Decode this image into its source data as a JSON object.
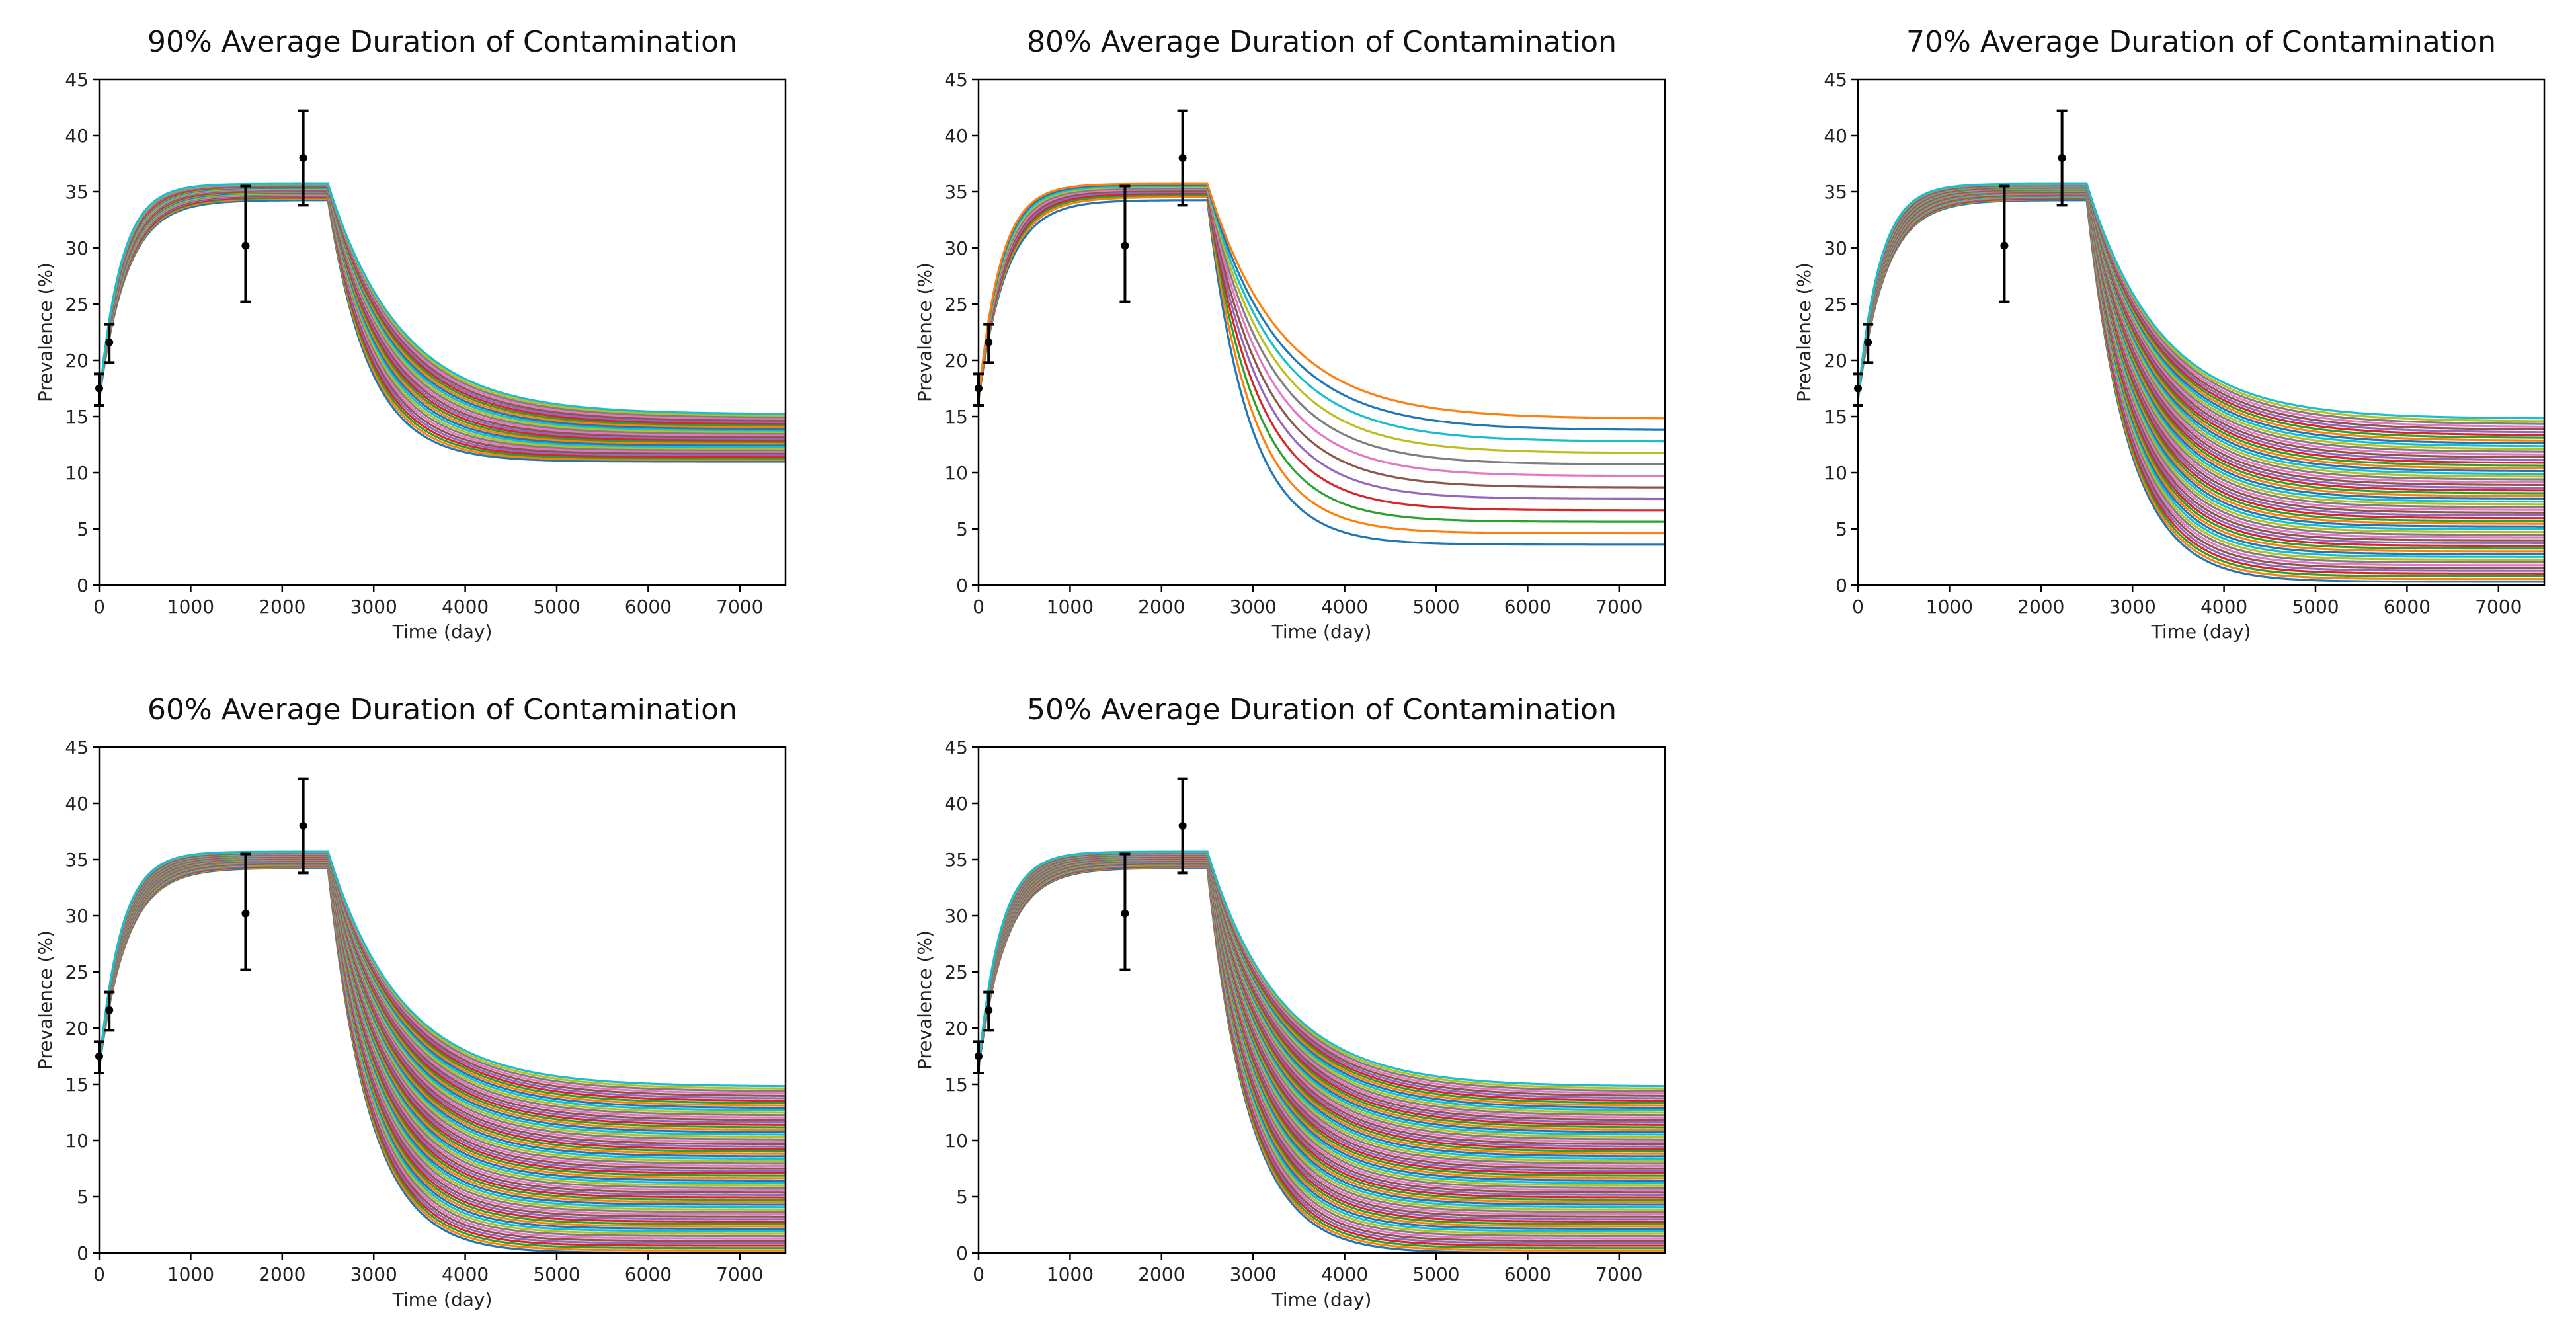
{
  "chart_data": [
    {
      "type": "line",
      "title": "90% Average Duration of Contamination",
      "xlabel": "Time (day)",
      "ylabel": "Prevalence (%)",
      "xlim": [
        0,
        7500
      ],
      "ylim": [
        0,
        45
      ],
      "xticks": [
        "0",
        "1000",
        "2000",
        "3000",
        "4000",
        "5000",
        "6000",
        "7000"
      ],
      "yticks": [
        "0",
        "5",
        "10",
        "15",
        "20",
        "25",
        "30",
        "35",
        "40",
        "45"
      ],
      "legend": "none",
      "grid": false,
      "series_summary": {
        "count": 30,
        "plateau_range": [
          34.0,
          35.7
        ],
        "drop_day": 2500,
        "final_range": [
          11.0,
          15.2
        ]
      },
      "observations": [
        {
          "x": 0,
          "y": 17.5,
          "err_low": 16.0,
          "err_high": 18.8
        },
        {
          "x": 110,
          "y": 21.6,
          "err_low": 19.8,
          "err_high": 23.2
        },
        {
          "x": 1600,
          "y": 30.2,
          "err_low": 25.2,
          "err_high": 35.5
        },
        {
          "x": 2230,
          "y": 38.0,
          "err_low": 33.8,
          "err_high": 42.2
        }
      ]
    },
    {
      "type": "line",
      "title": "80% Average Duration of Contamination",
      "xlabel": "Time (day)",
      "ylabel": "Prevalence (%)",
      "xlim": [
        0,
        7500
      ],
      "ylim": [
        0,
        45
      ],
      "xticks": [
        "0",
        "1000",
        "2000",
        "3000",
        "4000",
        "5000",
        "6000",
        "7000"
      ],
      "yticks": [
        "0",
        "5",
        "10",
        "15",
        "20",
        "25",
        "30",
        "35",
        "40",
        "45"
      ],
      "legend": "none",
      "grid": false,
      "series_summary": {
        "count": 12,
        "plateau_range": [
          34.0,
          35.7
        ],
        "drop_day": 2500,
        "final_range": [
          3.6,
          14.8
        ]
      },
      "observations": [
        {
          "x": 0,
          "y": 17.5,
          "err_low": 16.0,
          "err_high": 18.8
        },
        {
          "x": 110,
          "y": 21.6,
          "err_low": 19.8,
          "err_high": 23.2
        },
        {
          "x": 1600,
          "y": 30.2,
          "err_low": 25.2,
          "err_high": 35.5
        },
        {
          "x": 2230,
          "y": 38.0,
          "err_low": 33.8,
          "err_high": 42.2
        }
      ]
    },
    {
      "type": "line",
      "title": "70% Average Duration of Contamination",
      "xlabel": "Time (day)",
      "ylabel": "Prevalence (%)",
      "xlim": [
        0,
        7500
      ],
      "ylim": [
        0,
        45
      ],
      "xticks": [
        "0",
        "1000",
        "2000",
        "3000",
        "4000",
        "5000",
        "6000",
        "7000"
      ],
      "yticks": [
        "0",
        "5",
        "10",
        "15",
        "20",
        "25",
        "30",
        "35",
        "40",
        "45"
      ],
      "legend": "none",
      "grid": false,
      "series_summary": {
        "count": 60,
        "plateau_range": [
          34.0,
          35.7
        ],
        "drop_day": 2500,
        "final_range": [
          0.3,
          14.8
        ]
      },
      "observations": [
        {
          "x": 0,
          "y": 17.5,
          "err_low": 16.0,
          "err_high": 18.8
        },
        {
          "x": 110,
          "y": 21.6,
          "err_low": 19.8,
          "err_high": 23.2
        },
        {
          "x": 1600,
          "y": 30.2,
          "err_low": 25.2,
          "err_high": 35.5
        },
        {
          "x": 2230,
          "y": 38.0,
          "err_low": 33.8,
          "err_high": 42.2
        }
      ]
    },
    {
      "type": "line",
      "title": "60% Average Duration of Contamination",
      "xlabel": "Time (day)",
      "ylabel": "Prevalence (%)",
      "xlim": [
        0,
        7500
      ],
      "ylim": [
        0,
        45
      ],
      "xticks": [
        "0",
        "1000",
        "2000",
        "3000",
        "4000",
        "5000",
        "6000",
        "7000"
      ],
      "yticks": [
        "0",
        "5",
        "10",
        "15",
        "20",
        "25",
        "30",
        "35",
        "40",
        "45"
      ],
      "legend": "none",
      "grid": false,
      "series_summary": {
        "count": 70,
        "plateau_range": [
          34.0,
          35.7
        ],
        "drop_day": 2500,
        "final_range": [
          0.0,
          14.8
        ]
      },
      "observations": [
        {
          "x": 0,
          "y": 17.5,
          "err_low": 16.0,
          "err_high": 18.8
        },
        {
          "x": 110,
          "y": 21.6,
          "err_low": 19.8,
          "err_high": 23.2
        },
        {
          "x": 1600,
          "y": 30.2,
          "err_low": 25.2,
          "err_high": 35.5
        },
        {
          "x": 2230,
          "y": 38.0,
          "err_low": 33.8,
          "err_high": 42.2
        }
      ]
    },
    {
      "type": "line",
      "title": "50% Average Duration of Contamination",
      "xlabel": "Time (day)",
      "ylabel": "Prevalence (%)",
      "xlim": [
        0,
        7500
      ],
      "ylim": [
        0,
        45
      ],
      "xticks": [
        "0",
        "1000",
        "2000",
        "3000",
        "4000",
        "5000",
        "6000",
        "7000"
      ],
      "yticks": [
        "0",
        "5",
        "10",
        "15",
        "20",
        "25",
        "30",
        "35",
        "40",
        "45"
      ],
      "legend": "none",
      "grid": false,
      "series_summary": {
        "count": 70,
        "plateau_range": [
          34.0,
          35.7
        ],
        "drop_day": 2500,
        "final_range": [
          0.0,
          14.8
        ]
      },
      "observations": [
        {
          "x": 0,
          "y": 17.5,
          "err_low": 16.0,
          "err_high": 18.8
        },
        {
          "x": 110,
          "y": 21.6,
          "err_low": 19.8,
          "err_high": 23.2
        },
        {
          "x": 1600,
          "y": 30.2,
          "err_low": 25.2,
          "err_high": 35.5
        },
        {
          "x": 2230,
          "y": 38.0,
          "err_low": 33.8,
          "err_high": 42.2
        }
      ]
    }
  ],
  "colors": {
    "palette": [
      "#1f77b4",
      "#ff7f0e",
      "#2ca02c",
      "#d62728",
      "#9467bd",
      "#8c564b",
      "#e377c2",
      "#7f7f7f",
      "#bcbd22",
      "#17becf"
    ],
    "observation": "#000000",
    "axes": "#000000"
  }
}
